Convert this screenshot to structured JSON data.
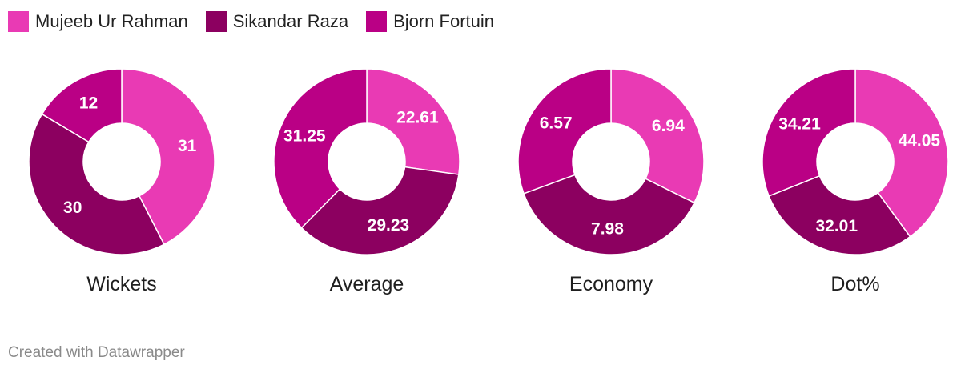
{
  "legend": [
    {
      "name": "Mujeeb Ur Rahman",
      "color": "#e93ab4"
    },
    {
      "name": "Sikandar Raza",
      "color": "#8c0060"
    },
    {
      "name": "Bjorn Fortuin",
      "color": "#ba0085"
    }
  ],
  "chart_data": [
    {
      "type": "pie",
      "variant": "donut",
      "title": "Wickets",
      "categories": [
        "Mujeeb Ur Rahman",
        "Sikandar Raza",
        "Bjorn Fortuin"
      ],
      "values": [
        31,
        30,
        12
      ],
      "labels": [
        "31",
        "30",
        "12"
      ]
    },
    {
      "type": "pie",
      "variant": "donut",
      "title": "Average",
      "categories": [
        "Mujeeb Ur Rahman",
        "Sikandar Raza",
        "Bjorn Fortuin"
      ],
      "values": [
        22.61,
        29.23,
        31.25
      ],
      "labels": [
        "22.61",
        "29.23",
        "31.25"
      ]
    },
    {
      "type": "pie",
      "variant": "donut",
      "title": "Economy",
      "categories": [
        "Mujeeb Ur Rahman",
        "Sikandar Raza",
        "Bjorn Fortuin"
      ],
      "values": [
        6.94,
        7.98,
        6.57
      ],
      "labels": [
        "6.94",
        "7.98",
        "6.57"
      ]
    },
    {
      "type": "pie",
      "variant": "donut",
      "title": "Dot%",
      "categories": [
        "Mujeeb Ur Rahman",
        "Sikandar Raza",
        "Bjorn Fortuin"
      ],
      "values": [
        44.05,
        32.01,
        34.21
      ],
      "labels": [
        "44.05",
        "32.01",
        "34.21"
      ]
    }
  ],
  "footer": "Created with Datawrapper"
}
